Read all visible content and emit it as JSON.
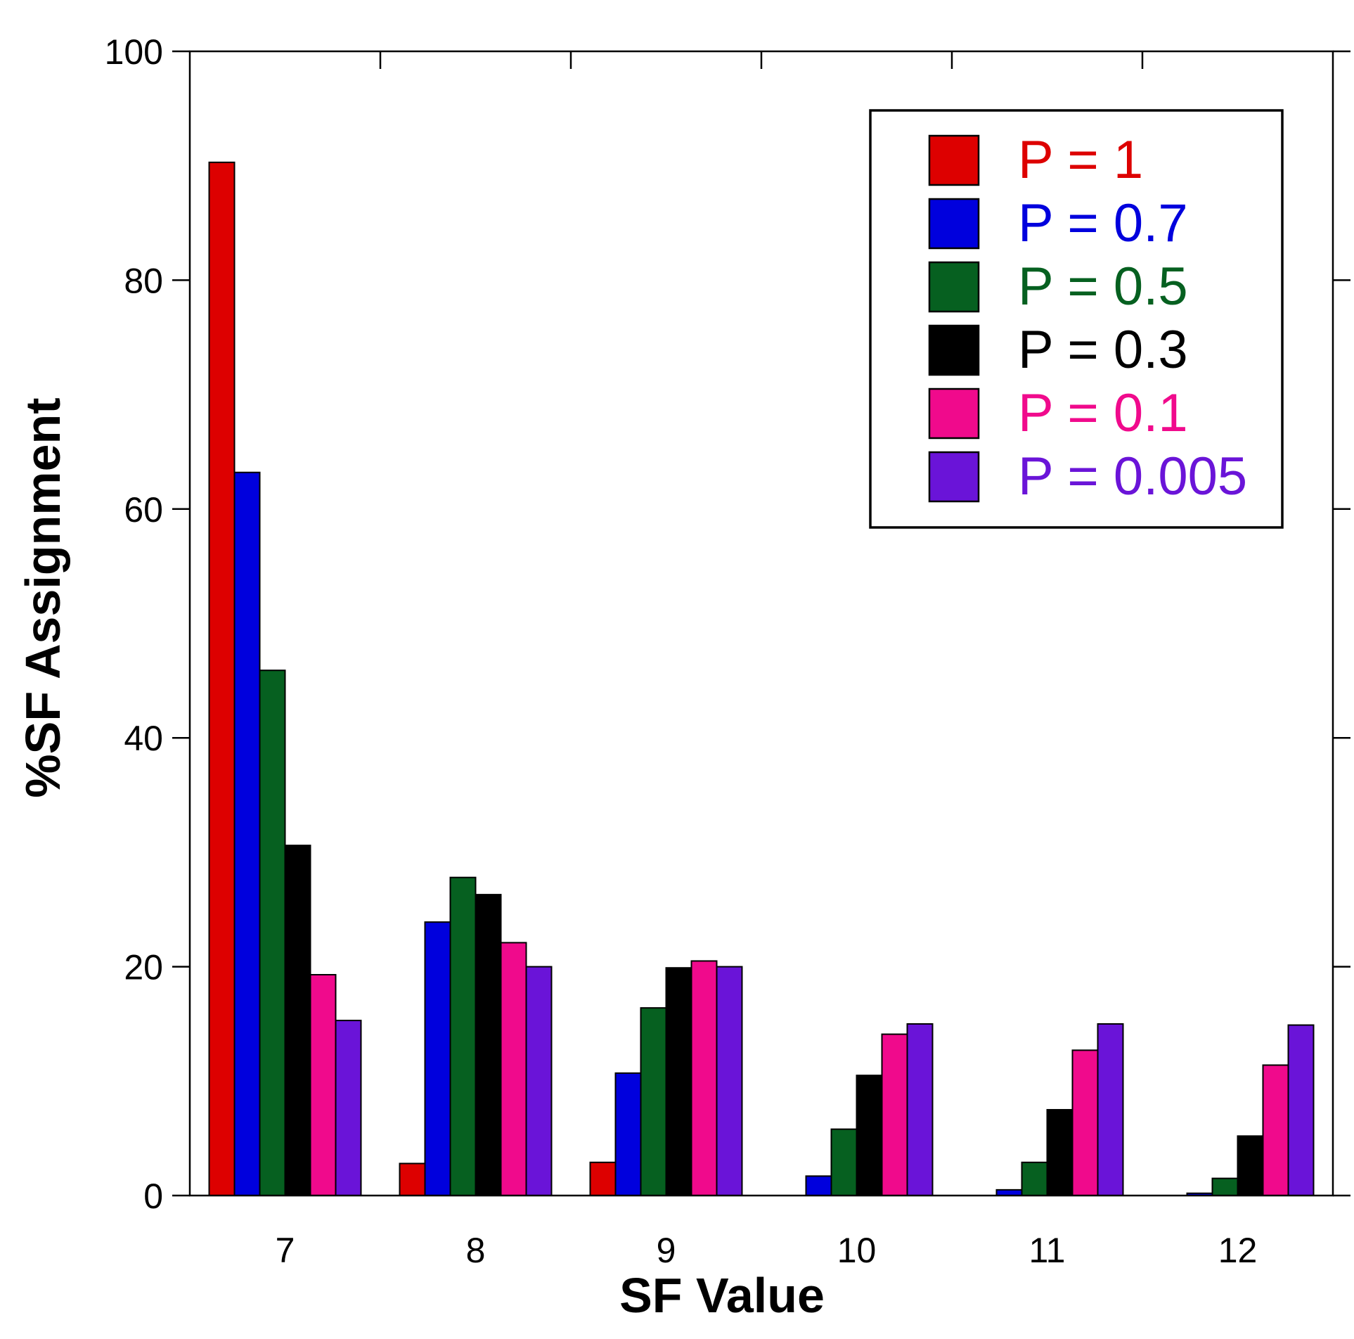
{
  "chart_data": {
    "type": "bar",
    "title": "",
    "xlabel": "SF Value",
    "ylabel": "%SF Assignment",
    "categories": [
      "7",
      "8",
      "9",
      "10",
      "11",
      "12"
    ],
    "ylim": [
      0,
      100
    ],
    "yticks": [
      "0",
      "20",
      "40",
      "60",
      "80",
      "100"
    ],
    "legend_position": "top-right",
    "series": [
      {
        "name": "P = 1",
        "color": "#dd0000",
        "values": [
          90.3,
          2.8,
          2.9,
          0,
          0,
          0
        ]
      },
      {
        "name": "P = 0.7",
        "color": "#0000dd",
        "values": [
          63.2,
          23.9,
          10.7,
          1.7,
          0.5,
          0.2
        ]
      },
      {
        "name": "P = 0.5",
        "color": "#066020",
        "values": [
          45.9,
          27.8,
          16.4,
          5.8,
          2.9,
          1.5
        ]
      },
      {
        "name": "P = 0.3",
        "color": "#000000",
        "values": [
          30.6,
          26.3,
          19.9,
          10.5,
          7.5,
          5.2
        ]
      },
      {
        "name": "P = 0.1",
        "color": "#f00a8c",
        "values": [
          19.3,
          22.1,
          20.5,
          14.1,
          12.7,
          11.4
        ]
      },
      {
        "name": "P = 0.005",
        "color": "#6a14d8",
        "values": [
          15.3,
          20.0,
          20.0,
          15.0,
          15.0,
          14.9
        ]
      }
    ]
  }
}
